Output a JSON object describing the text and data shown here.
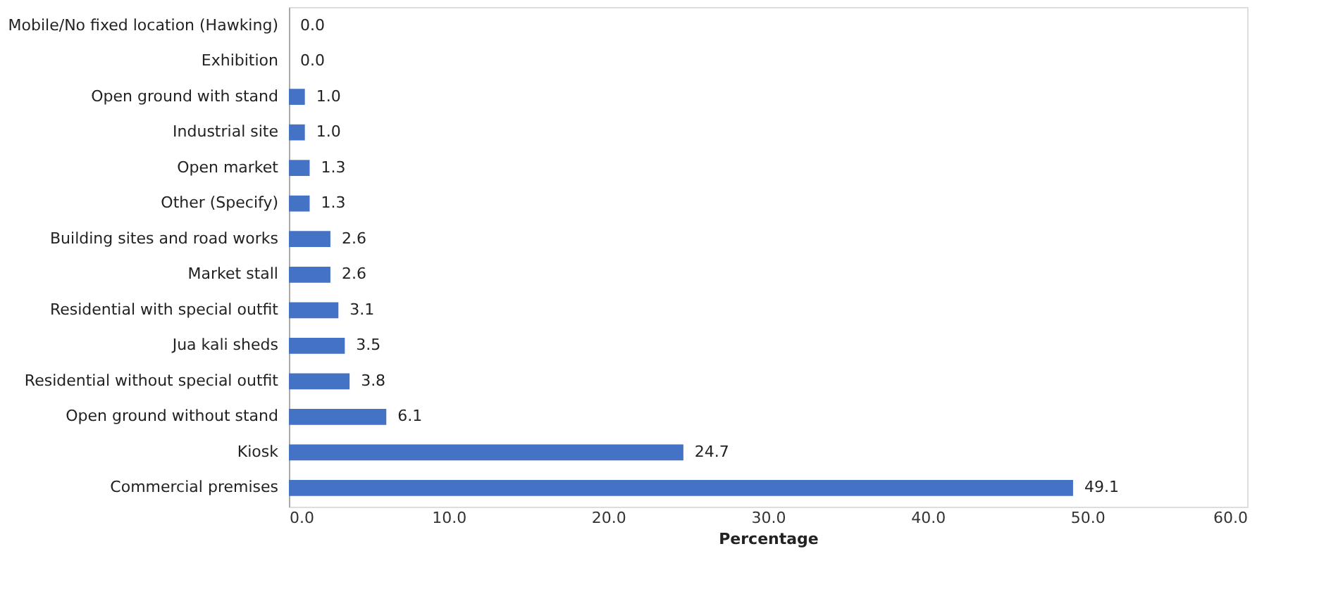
{
  "chart_data": {
    "type": "bar",
    "orientation": "horizontal",
    "xlabel": "Percentage",
    "categories": [
      "Mobile/No fixed location (Hawking)",
      "Exhibition",
      "Open ground with stand",
      "Industrial site",
      "Open market",
      "Other (Specify)",
      "Building sites and road works",
      "Market stall",
      "Residential with special outfit",
      "Jua kali sheds",
      "Residential without special outfit",
      "Open ground without stand",
      "Kiosk",
      "Commercial premises"
    ],
    "values": [
      0.0,
      0.0,
      1.0,
      1.0,
      1.3,
      1.3,
      2.6,
      2.6,
      3.1,
      3.5,
      3.8,
      6.1,
      24.7,
      49.1
    ],
    "value_labels": [
      "0.0",
      "0.0",
      "1.0",
      "1.0",
      "1.3",
      "1.3",
      "2.6",
      "2.6",
      "3.1",
      "3.5",
      "3.8",
      "6.1",
      "24.7",
      "49.1"
    ],
    "color": "#4472c4",
    "grid": false,
    "xlim": [
      0,
      60
    ],
    "xticks": [
      {
        "value": 0,
        "label": "0.0"
      },
      {
        "value": 10,
        "label": "10.0"
      },
      {
        "value": 20,
        "label": "20.0"
      },
      {
        "value": 30,
        "label": "30.0"
      },
      {
        "value": 40,
        "label": "40.0"
      },
      {
        "value": 50,
        "label": "50.0"
      },
      {
        "value": 60,
        "label": "60.0"
      }
    ]
  }
}
